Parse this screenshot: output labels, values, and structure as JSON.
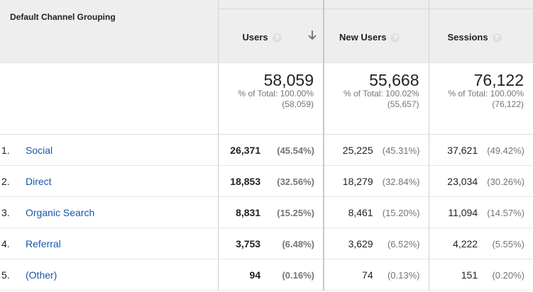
{
  "dimension_header": "Default Channel Grouping",
  "metrics": [
    {
      "label": "Users",
      "help": "?",
      "sorted": true
    },
    {
      "label": "New Users",
      "help": "?",
      "sorted": false
    },
    {
      "label": "Sessions",
      "help": "?",
      "sorted": false
    }
  ],
  "totals": [
    {
      "value": "58,059",
      "pct": "% of Total: 100.00%",
      "sub": "(58,059)"
    },
    {
      "value": "55,668",
      "pct": "% of Total: 100.02%",
      "sub": "(55,657)"
    },
    {
      "value": "76,122",
      "pct": "% of Total: 100.00%",
      "sub": "(76,122)"
    }
  ],
  "rows": [
    {
      "rank": "1.",
      "channel": "Social",
      "users": "26,371",
      "users_pct": "(45.54%)",
      "new_users": "25,225",
      "new_users_pct": "(45.31%)",
      "sessions": "37,621",
      "sessions_pct": "(49.42%)"
    },
    {
      "rank": "2.",
      "channel": "Direct",
      "users": "18,853",
      "users_pct": "(32.56%)",
      "new_users": "18,279",
      "new_users_pct": "(32.84%)",
      "sessions": "23,034",
      "sessions_pct": "(30.26%)"
    },
    {
      "rank": "3.",
      "channel": "Organic Search",
      "users": "8,831",
      "users_pct": "(15.25%)",
      "new_users": "8,461",
      "new_users_pct": "(15.20%)",
      "sessions": "11,094",
      "sessions_pct": "(14.57%)"
    },
    {
      "rank": "4.",
      "channel": "Referral",
      "users": "3,753",
      "users_pct": "(6.48%)",
      "new_users": "3,629",
      "new_users_pct": "(6.52%)",
      "sessions": "4,222",
      "sessions_pct": "(5.55%)"
    },
    {
      "rank": "5.",
      "channel": "(Other)",
      "users": "94",
      "users_pct": "(0.16%)",
      "new_users": "74",
      "new_users_pct": "(0.13%)",
      "sessions": "151",
      "sessions_pct": "(0.20%)"
    }
  ],
  "colors": {
    "link": "#1a56a8",
    "header_bg": "#eeeeee",
    "muted": "#757575"
  }
}
